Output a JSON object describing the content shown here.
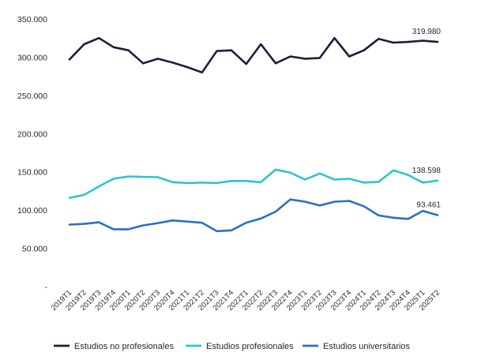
{
  "chart_data": {
    "type": "line",
    "title": "",
    "xlabel": "",
    "ylabel": "",
    "ylim": [
      0,
      350000
    ],
    "y_ticks": [
      {
        "value": 350000,
        "label": "350.000"
      },
      {
        "value": 300000,
        "label": "300.000"
      },
      {
        "value": 250000,
        "label": "250.000"
      },
      {
        "value": 200000,
        "label": "200.000"
      },
      {
        "value": 150000,
        "label": "150.000"
      },
      {
        "value": 100000,
        "label": "100.000"
      },
      {
        "value": 50000,
        "label": "50.000"
      },
      {
        "value": 0,
        "label": "-"
      }
    ],
    "grid": false,
    "legend_position": "bottom",
    "x": [
      "2019T1",
      "2019T2",
      "2019T3",
      "2019T4",
      "2020T1",
      "2020T2",
      "2020T3",
      "2020T4",
      "2021T1",
      "2021T2",
      "2021T3",
      "2021T4",
      "2022T1",
      "2022T2",
      "2022T3",
      "2022T4",
      "2023T1",
      "2023T2",
      "2023T3",
      "2023T4",
      "2024T1",
      "2024T2",
      "2024T3",
      "2024T4",
      "2025T1",
      "2025T2"
    ],
    "series": [
      {
        "name": "Estudios no profesionales",
        "color": "#1a1f3d",
        "values": [
          297000,
          317000,
          325000,
          313000,
          309000,
          292000,
          298000,
          293000,
          287000,
          280000,
          308000,
          309000,
          291000,
          317000,
          292000,
          301000,
          298000,
          299000,
          325000,
          301000,
          309000,
          324000,
          319000,
          320000,
          321500,
          319980
        ],
        "end_label": "319.980"
      },
      {
        "name": "Estudios profesionales",
        "color": "#2ec4d0",
        "values": [
          116000,
          120000,
          131000,
          141000,
          144000,
          143500,
          143000,
          136500,
          135500,
          136000,
          135500,
          138000,
          138000,
          136500,
          153000,
          149000,
          140000,
          148000,
          140000,
          141000,
          136000,
          137000,
          152000,
          146000,
          136000,
          138598
        ],
        "end_label": "138.598"
      },
      {
        "name": "Estudios universitarios",
        "color": "#2b6fc4",
        "values": [
          81000,
          82000,
          84000,
          75000,
          75000,
          80000,
          83000,
          86500,
          85000,
          83500,
          72500,
          73500,
          83500,
          89000,
          98000,
          114000,
          111000,
          106000,
          111000,
          112000,
          105000,
          93000,
          90000,
          88500,
          99000,
          93461
        ],
        "end_label": "93.461"
      }
    ]
  }
}
